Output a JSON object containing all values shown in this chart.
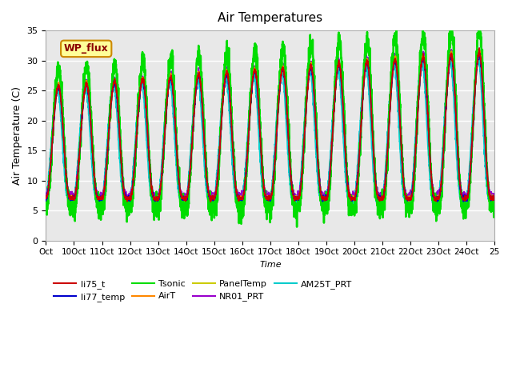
{
  "title": "Air Temperatures",
  "xlabel": "Time",
  "ylabel": "Air Temperature (C)",
  "ylim": [
    0,
    35
  ],
  "xtick_labels": [
    "Oct",
    "10Oct",
    "11Oct",
    "12Oct",
    "13Oct",
    "14Oct",
    "15Oct",
    "16Oct",
    "17Oct",
    "18Oct",
    "19Oct",
    "20Oct",
    "21Oct",
    "22Oct",
    "23Oct",
    "24Oct",
    "25"
  ],
  "xtick_positions": [
    0,
    1,
    2,
    3,
    4,
    5,
    6,
    7,
    8,
    9,
    10,
    11,
    12,
    13,
    14,
    15,
    16
  ],
  "ytick_values": [
    0,
    5,
    10,
    15,
    20,
    25,
    30,
    35
  ],
  "series_colors": {
    "li75_t": "#cc0000",
    "li77_temp": "#0000cc",
    "Tsonic": "#00dd00",
    "AirT": "#ff8800",
    "PanelTemp": "#cccc00",
    "NR01_PRT": "#9900cc",
    "AM25T_PRT": "#00cccc"
  },
  "series_linewidths": {
    "li75_t": 1.2,
    "li77_temp": 1.2,
    "Tsonic": 1.8,
    "AirT": 1.2,
    "PanelTemp": 1.2,
    "NR01_PRT": 1.2,
    "AM25T_PRT": 2.0
  },
  "wp_flux_label": "WP_flux",
  "wp_flux_box_color": "#ffff99",
  "wp_flux_border_color": "#cc8800",
  "background_color": "#e8e8e8",
  "grid_color": "white"
}
